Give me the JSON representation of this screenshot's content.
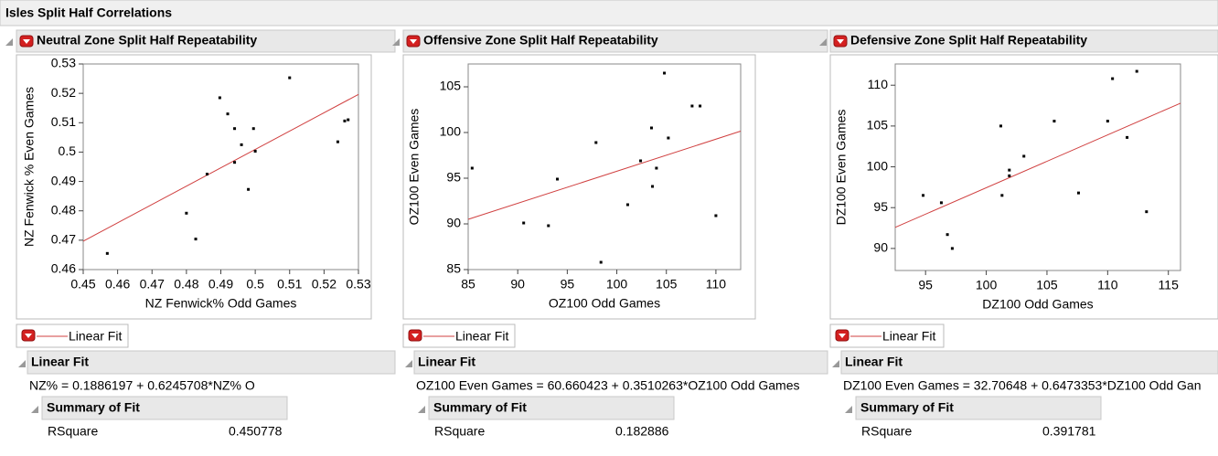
{
  "window_title": "Isles Split Half Correlations",
  "chart_data": [
    {
      "type": "scatter",
      "title": "Neutral Zone Split Half Repeatability",
      "x_label": "NZ Fenwick% Odd Games",
      "y_label": "NZ Fenwick % Even Games",
      "x": [
        0.457,
        0.48,
        0.4827,
        0.486,
        0.4897,
        0.492,
        0.494,
        0.494,
        0.496,
        0.498,
        0.4995,
        0.5,
        0.51,
        0.524,
        0.526,
        0.527
      ],
      "values": [
        0.4655,
        0.4792,
        0.4704,
        0.4925,
        0.5185,
        0.513,
        0.508,
        0.4965,
        0.5025,
        0.4873,
        0.508,
        0.5003,
        0.5253,
        0.5035,
        0.5106,
        0.511
      ],
      "color": "#000000",
      "xlim": [
        0.45,
        0.53
      ],
      "xticks": [
        0.45,
        0.46,
        0.47,
        0.48,
        0.49,
        0.5,
        0.51,
        0.52,
        0.53
      ],
      "ylim": [
        0.46,
        0.53
      ],
      "yticks": [
        0.46,
        0.47,
        0.48,
        0.49,
        0.5,
        0.51,
        0.52,
        0.53
      ],
      "fit": {
        "name": "Linear Fit",
        "intercept": 0.1886197,
        "slope": 0.6245708,
        "color": "#d04040"
      }
    },
    {
      "type": "scatter",
      "title": "Offensive Zone Split Half Repeatability",
      "x_label": "OZ100 Odd Games",
      "y_label": "OZ100 Even Games",
      "x": [
        85.4,
        90.6,
        93.1,
        94.0,
        97.9,
        98.4,
        101.1,
        102.4,
        103.5,
        103.6,
        104.0,
        104.8,
        105.2,
        107.6,
        108.4,
        110.0
      ],
      "values": [
        96.1,
        90.1,
        89.8,
        94.9,
        98.9,
        85.8,
        92.1,
        96.9,
        100.5,
        94.1,
        96.1,
        106.5,
        99.4,
        102.9,
        102.9,
        90.9
      ],
      "color": "#000000",
      "xlim": [
        85,
        112.5
      ],
      "xticks": [
        85,
        90,
        95,
        100,
        105,
        110
      ],
      "ylim": [
        85,
        107.5
      ],
      "yticks": [
        85,
        90,
        95,
        100,
        105
      ],
      "fit": {
        "name": "Linear Fit",
        "intercept": 60.660423,
        "slope": 0.3510263,
        "color": "#d04040"
      }
    },
    {
      "type": "scatter",
      "title": "Defensive Zone Split Half Repeatability",
      "x_label": "DZ100 Odd Games",
      "y_label": "DZ100 Even Games",
      "x": [
        94.8,
        96.3,
        96.8,
        97.2,
        101.2,
        101.3,
        101.9,
        101.9,
        103.1,
        105.6,
        107.6,
        110.0,
        110.4,
        111.6,
        112.4,
        113.2
      ],
      "values": [
        96.5,
        95.6,
        91.7,
        90.0,
        105.0,
        96.5,
        99.6,
        98.9,
        101.3,
        105.6,
        96.8,
        105.6,
        110.8,
        103.6,
        111.7,
        94.5
      ],
      "color": "#000000",
      "xlim": [
        92.5,
        116
      ],
      "xticks": [
        95,
        100,
        105,
        110,
        115
      ],
      "ylim": [
        87.3,
        112.6
      ],
      "yticks": [
        90,
        95,
        100,
        105,
        110
      ],
      "fit": {
        "name": "Linear Fit",
        "intercept": 32.70648,
        "slope": 0.6473353,
        "color": "#d04040"
      }
    }
  ],
  "reports": [
    {
      "fit_title": "Linear Fit",
      "equation": "NZ% = 0.1886197 + 0.6245708*NZ% O",
      "summary_title": "Summary of Fit",
      "rsquare_label": "RSquare",
      "rsquare": "0.450778"
    },
    {
      "fit_title": "Linear Fit",
      "equation": "OZ100 Even Games = 60.660423 + 0.3510263*OZ100 Odd Games",
      "summary_title": "Summary of Fit",
      "rsquare_label": "RSquare",
      "rsquare": "0.182886"
    },
    {
      "fit_title": "Linear Fit",
      "equation": "DZ100 Even Games = 32.70648 + 0.6473353*DZ100 Odd Gan",
      "summary_title": "Summary of Fit",
      "rsquare_label": "RSquare",
      "rsquare": "0.391781"
    }
  ]
}
